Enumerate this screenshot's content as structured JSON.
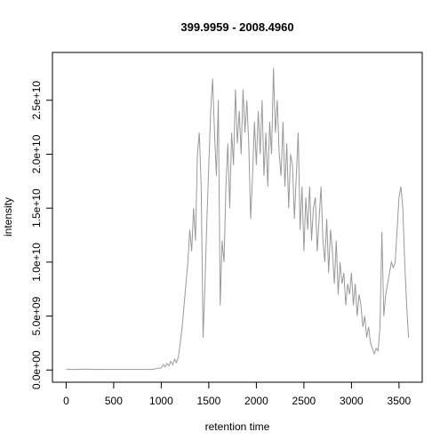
{
  "chart_data": {
    "type": "line",
    "title": "399.9959 - 2008.4960",
    "x_label": "retention time",
    "y_label": "intensity",
    "x": [
      0,
      100,
      200,
      300,
      400,
      500,
      600,
      700,
      800,
      900,
      1000,
      1020,
      1040,
      1060,
      1080,
      1100,
      1120,
      1140,
      1160,
      1180,
      1200,
      1220,
      1240,
      1260,
      1280,
      1300,
      1320,
      1340,
      1360,
      1380,
      1400,
      1420,
      1440,
      1460,
      1480,
      1500,
      1520,
      1540,
      1560,
      1580,
      1600,
      1620,
      1640,
      1660,
      1680,
      1700,
      1720,
      1740,
      1760,
      1780,
      1800,
      1820,
      1840,
      1860,
      1880,
      1900,
      1920,
      1940,
      1960,
      1980,
      2000,
      2020,
      2040,
      2060,
      2080,
      2100,
      2120,
      2140,
      2160,
      2180,
      2200,
      2220,
      2240,
      2260,
      2280,
      2300,
      2320,
      2340,
      2360,
      2380,
      2400,
      2420,
      2440,
      2460,
      2480,
      2500,
      2520,
      2540,
      2560,
      2580,
      2600,
      2620,
      2640,
      2660,
      2680,
      2700,
      2720,
      2740,
      2760,
      2780,
      2800,
      2820,
      2840,
      2860,
      2880,
      2900,
      2920,
      2940,
      2960,
      2980,
      3000,
      3020,
      3040,
      3060,
      3080,
      3100,
      3120,
      3140,
      3160,
      3180,
      3200,
      3220,
      3240,
      3260,
      3280,
      3300,
      3320,
      3340,
      3360,
      3380,
      3400,
      3420,
      3440,
      3460,
      3480,
      3500,
      3520,
      3540,
      3560,
      3580,
      3600
    ],
    "series": [
      {
        "name": "intensity",
        "color": "#999999",
        "values": [
          50000000.0,
          50000000.0,
          80000000.0,
          50000000.0,
          50000000.0,
          50000000.0,
          50000000.0,
          50000000.0,
          50000000.0,
          50000000.0,
          200000000.0,
          500000000.0,
          300000000.0,
          600000000.0,
          400000000.0,
          800000000.0,
          500000000.0,
          1000000000.0,
          700000000.0,
          1200000000.0,
          2500000000.0,
          4000000000.0,
          6000000000.0,
          8000000000.0,
          10000000000.0,
          13000000000.0,
          11000000000.0,
          15000000000.0,
          12000000000.0,
          20000000000.0,
          22000000000.0,
          17000000000.0,
          3000000000.0,
          8000000000.0,
          14000000000.0,
          19000000000.0,
          24000000000.0,
          27000000000.0,
          22000000000.0,
          18000000000.0,
          25000000000.0,
          6000000000.0,
          12000000000.0,
          10000000000.0,
          17000000000.0,
          21000000000.0,
          15000000000.0,
          22000000000.0,
          19000000000.0,
          26000000000.0,
          21000000000.0,
          24000000000.0,
          20000000000.0,
          26000000000.0,
          22000000000.0,
          25000000000.0,
          21000000000.0,
          14000000000.0,
          18000000000.0,
          23000000000.0,
          19000000000.0,
          24000000000.0,
          20000000000.0,
          25000000000.0,
          18000000000.0,
          22000000000.0,
          17000000000.0,
          23000000000.0,
          20000000000.0,
          28000000000.0,
          22000000000.0,
          25000000000.0,
          20000000000.0,
          18000000000.0,
          23000000000.0,
          17000000000.0,
          21000000000.0,
          15000000000.0,
          20000000000.0,
          19000000000.0,
          14000000000.0,
          18000000000.0,
          22000000000.0,
          13000000000.0,
          17000000000.0,
          11000000000.0,
          16000000000.0,
          13000000000.0,
          17000000000.0,
          12000000000.0,
          15000000000.0,
          16000000000.0,
          11000000000.0,
          14000000000.0,
          17000000000.0,
          12000000000.0,
          10000000000.0,
          14000000000.0,
          9000000000.0,
          13000000000.0,
          11000000000.0,
          8000000000.0,
          12000000000.0,
          7000000000.0,
          10000000000.0,
          8000000000.0,
          9000000000.0,
          6000000000.0,
          8000000000.0,
          7000000000.0,
          9000000000.0,
          6000000000.0,
          8000000000.0,
          5000000000.0,
          7000000000.0,
          6000000000.0,
          4000000000.0,
          5000000000.0,
          3000000000.0,
          4000000000.0,
          2500000000.0,
          2000000000.0,
          1500000000.0,
          2000000000.0,
          1800000000.0,
          4000000000.0,
          12800000000.0,
          5000000000.0,
          7000000000.0,
          8000000000.0,
          9000000000.0,
          10000000000.0,
          9500000000.0,
          10000000000.0,
          13000000000.0,
          16000000000.0,
          17000000000.0,
          15000000000.0,
          10000000000.0,
          6000000000.0,
          3000000000.0
        ]
      }
    ],
    "xlim": [
      -144,
      3744
    ],
    "ylim": [
      -1130000000.0,
      29430000000.0
    ],
    "xticks": [
      0,
      500,
      1000,
      1500,
      2000,
      2500,
      3000,
      3500
    ],
    "yticks": [
      {
        "value": 0,
        "label": "0.0e+00"
      },
      {
        "value": 5000000000.0,
        "label": "5.0e+09"
      },
      {
        "value": 10000000000.0,
        "label": "1.0e+10"
      },
      {
        "value": 15000000000.0,
        "label": "1.5e+10"
      },
      {
        "value": 20000000000.0,
        "label": "2.0e+10"
      },
      {
        "value": 25000000000.0,
        "label": "2.5e+10"
      }
    ]
  }
}
